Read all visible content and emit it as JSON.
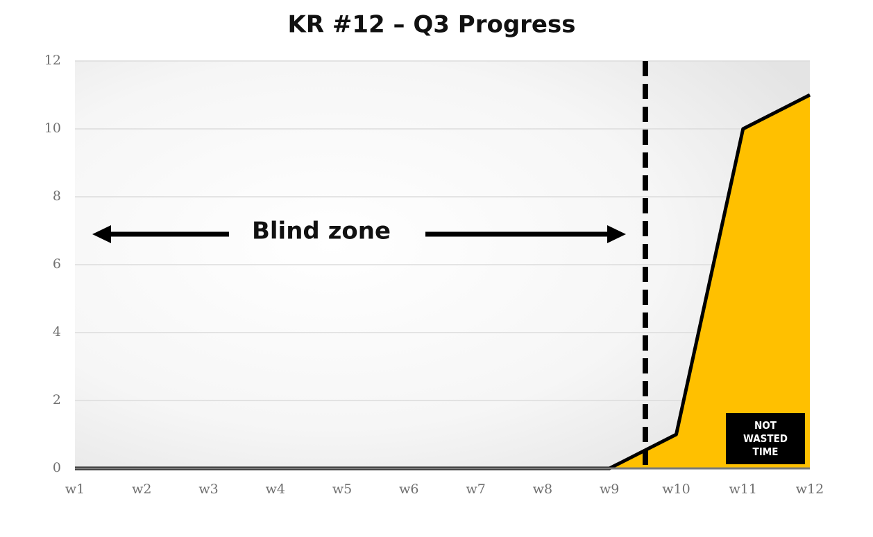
{
  "chart_data": {
    "type": "area",
    "title": "KR #12 – Q3 Progress",
    "categories": [
      "w1",
      "w2",
      "w3",
      "w4",
      "w5",
      "w6",
      "w7",
      "w8",
      "w9",
      "w10",
      "w11",
      "w12"
    ],
    "values": [
      0,
      0,
      0,
      0,
      0,
      0,
      0,
      0,
      0,
      1,
      10,
      11
    ],
    "color": "#ffc000",
    "line_color": "#000000",
    "ylim": [
      0,
      12
    ],
    "yticks": [
      0,
      2,
      4,
      6,
      8,
      10,
      12
    ],
    "grid": true,
    "annotations": {
      "zone": "Blind zone",
      "badge": "NOT WASTED TIME"
    }
  }
}
